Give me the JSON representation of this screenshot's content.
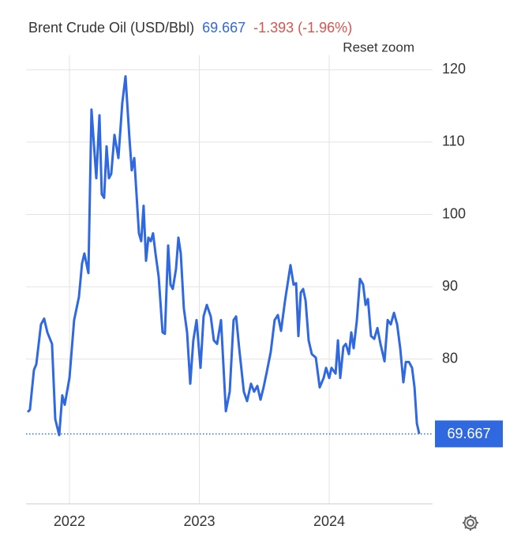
{
  "chart_data": {
    "type": "line",
    "title": "Brent Crude Oil (USD/Bbl)",
    "price": "69.667",
    "change": "-1.393 (-1.96%)",
    "reset_label": "Reset zoom",
    "color": "#3068e0",
    "last_value": 69.667,
    "grid": true,
    "xlim": [
      2021.666,
      2024.796
    ],
    "xticks": [
      2022,
      2023,
      2024
    ],
    "ylim": [
      60,
      122
    ],
    "yticks": [
      80,
      90,
      100,
      110,
      120
    ],
    "x": [
      2021.678,
      2021.696,
      2021.727,
      2021.745,
      2021.781,
      2021.805,
      2021.83,
      2021.866,
      2021.891,
      2021.921,
      2021.945,
      2021.964,
      2022.0,
      2022.036,
      2022.073,
      2022.097,
      2022.115,
      2022.146,
      2022.17,
      2022.207,
      2022.231,
      2022.249,
      2022.267,
      2022.286,
      2022.304,
      2022.322,
      2022.347,
      2022.377,
      2022.407,
      2022.432,
      2022.462,
      2022.48,
      2022.499,
      2022.535,
      2022.553,
      2022.571,
      2022.59,
      2022.608,
      2022.626,
      2022.644,
      2022.663,
      2022.687,
      2022.717,
      2022.735,
      2022.76,
      2022.778,
      2022.796,
      2022.821,
      2022.839,
      2022.857,
      2022.881,
      2022.906,
      2022.93,
      2022.954,
      2022.979,
      2023.009,
      2023.033,
      2023.058,
      2023.088,
      2023.112,
      2023.137,
      2023.167,
      2023.204,
      2023.234,
      2023.264,
      2023.283,
      2023.307,
      2023.343,
      2023.368,
      2023.398,
      2023.422,
      2023.447,
      2023.471,
      2023.495,
      2023.52,
      2023.55,
      2023.58,
      2023.605,
      2023.629,
      2023.66,
      2023.702,
      2023.726,
      2023.745,
      2023.763,
      2023.781,
      2023.799,
      2023.818,
      2023.842,
      2023.866,
      2023.897,
      2023.927,
      2023.957,
      2023.976,
      2024.0,
      2024.018,
      2024.049,
      2024.067,
      2024.085,
      2024.109,
      2024.128,
      2024.152,
      2024.17,
      2024.188,
      2024.213,
      2024.237,
      2024.261,
      2024.28,
      2024.298,
      2024.322,
      2024.347,
      2024.371,
      2024.395,
      2024.426,
      2024.45,
      2024.474,
      2024.499,
      2024.523,
      2024.547,
      2024.571,
      2024.59,
      2024.614,
      2024.638,
      2024.657,
      2024.675,
      2024.693
    ],
    "values": [
      72.7,
      73.0,
      78.5,
      79.3,
      84.8,
      85.6,
      83.7,
      82.1,
      71.7,
      69.5,
      75.0,
      73.7,
      77.4,
      85.4,
      88.6,
      93.2,
      94.6,
      91.9,
      114.5,
      105.0,
      113.7,
      102.8,
      102.3,
      109.4,
      105.0,
      105.6,
      111.0,
      107.8,
      115.4,
      119.1,
      110.5,
      106.1,
      107.8,
      97.4,
      96.3,
      101.2,
      93.6,
      96.8,
      96.3,
      97.4,
      94.6,
      91.4,
      83.7,
      83.5,
      95.7,
      90.3,
      89.7,
      92.5,
      96.8,
      94.6,
      87.0,
      83.7,
      76.6,
      82.6,
      85.4,
      78.8,
      85.9,
      87.5,
      85.9,
      82.6,
      82.1,
      85.4,
      72.8,
      75.5,
      85.4,
      85.9,
      81.5,
      75.5,
      74.2,
      76.6,
      75.5,
      76.3,
      74.4,
      76.1,
      78.3,
      81.0,
      85.4,
      86.1,
      83.9,
      88.1,
      93.0,
      90.3,
      90.5,
      83.2,
      89.2,
      89.7,
      88.1,
      82.6,
      80.7,
      80.2,
      76.1,
      77.4,
      78.8,
      77.4,
      78.8,
      78.0,
      82.6,
      77.4,
      81.7,
      82.1,
      80.7,
      83.7,
      81.5,
      85.4,
      91.1,
      90.3,
      87.5,
      88.3,
      83.2,
      82.8,
      84.3,
      82.1,
      79.7,
      85.4,
      84.8,
      86.4,
      84.8,
      81.5,
      76.8,
      79.6,
      79.6,
      78.8,
      76.1,
      71.1,
      69.667
    ]
  }
}
